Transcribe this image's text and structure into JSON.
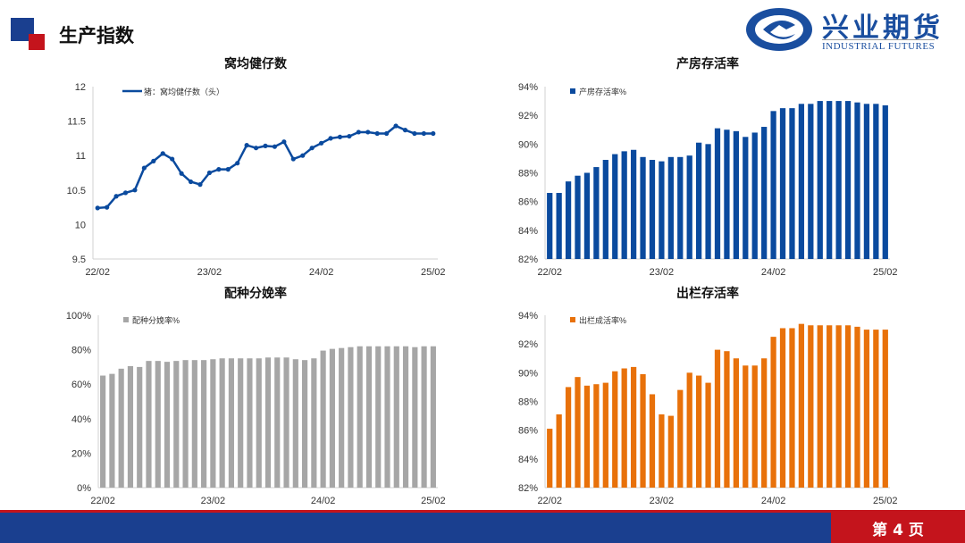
{
  "header": {
    "title": "生产指数",
    "logo_cn": "兴业期货",
    "logo_en": "INDUSTRIAL FUTURES"
  },
  "footer": {
    "page": "第 4 页"
  },
  "colors": {
    "navy": "#1a3f8f",
    "red": "#c4141c",
    "blue": "#0a4a9e",
    "gray": "#a6a6a6",
    "orange": "#e8710a"
  },
  "chart_data": [
    {
      "type": "line",
      "title": "窝均健仔数",
      "legend": "猪：窝均健仔数（头）",
      "color": "#0a4a9e",
      "xticks": [
        "22/02",
        "23/02",
        "24/02",
        "25/02"
      ],
      "ylim": [
        9.5,
        12
      ],
      "yticks": [
        "9.5",
        "10",
        "10.5",
        "11",
        "11.5",
        "12"
      ],
      "ytick_values": [
        9.5,
        10,
        10.5,
        11,
        11.5,
        12
      ],
      "values": [
        10.24,
        10.25,
        10.41,
        10.46,
        10.5,
        10.82,
        10.92,
        11.03,
        10.95,
        10.74,
        10.62,
        10.58,
        10.75,
        10.8,
        10.8,
        10.89,
        11.15,
        11.11,
        11.14,
        11.13,
        11.2,
        10.95,
        11.0,
        11.11,
        11.18,
        11.25,
        11.27,
        11.28,
        11.34,
        11.34,
        11.32,
        11.32,
        11.43,
        11.37,
        11.32,
        11.32,
        11.32
      ]
    },
    {
      "type": "bar",
      "title": "产房存活率",
      "legend": "产房存活率%",
      "color": "#0a4a9e",
      "xticks": [
        "22/02",
        "23/02",
        "24/02",
        "25/02"
      ],
      "ylim": [
        82,
        94
      ],
      "yticks": [
        "82%",
        "84%",
        "86%",
        "88%",
        "90%",
        "92%",
        "94%"
      ],
      "ytick_values": [
        82,
        84,
        86,
        88,
        90,
        92,
        94
      ],
      "values": [
        86.6,
        86.6,
        87.4,
        87.8,
        88.0,
        88.4,
        88.9,
        89.3,
        89.5,
        89.6,
        89.1,
        88.9,
        88.8,
        89.1,
        89.1,
        89.2,
        90.1,
        90.0,
        91.1,
        91.0,
        90.9,
        90.5,
        90.8,
        91.2,
        92.3,
        92.5,
        92.5,
        92.8,
        92.8,
        93.0,
        93.0,
        93.0,
        93.0,
        92.9,
        92.8,
        92.8,
        92.7
      ]
    },
    {
      "type": "bar",
      "title": "配种分娩率",
      "legend": "配种分娩率%",
      "color": "#a6a6a6",
      "xticks": [
        "22/02",
        "23/02",
        "24/02",
        "25/02"
      ],
      "ylim": [
        0,
        100
      ],
      "yticks": [
        "0%",
        "20%",
        "40%",
        "60%",
        "80%",
        "100%"
      ],
      "ytick_values": [
        0,
        20,
        40,
        60,
        80,
        100
      ],
      "values": [
        65,
        66,
        69,
        70.5,
        70,
        73.5,
        73.5,
        73,
        73.5,
        74,
        74,
        74,
        74.5,
        75,
        75,
        75,
        75,
        75,
        75.5,
        75.5,
        75.5,
        74.5,
        74,
        75,
        79.5,
        80.5,
        81,
        81.5,
        82,
        82,
        82,
        82,
        82,
        82,
        81.5,
        82,
        82
      ]
    },
    {
      "type": "bar",
      "title": "出栏存活率",
      "legend": "出栏成活率%",
      "color": "#e8710a",
      "xticks": [
        "22/02",
        "23/02",
        "24/02",
        "25/02"
      ],
      "ylim": [
        82,
        94
      ],
      "yticks": [
        "82%",
        "84%",
        "86%",
        "88%",
        "90%",
        "92%",
        "94%"
      ],
      "ytick_values": [
        82,
        84,
        86,
        88,
        90,
        92,
        94
      ],
      "values": [
        86.1,
        87.1,
        89.0,
        89.7,
        89.1,
        89.2,
        89.3,
        90.1,
        90.3,
        90.4,
        89.9,
        88.5,
        87.1,
        87.0,
        88.8,
        90.0,
        89.8,
        89.3,
        91.6,
        91.5,
        91.0,
        90.5,
        90.5,
        91.0,
        92.5,
        93.1,
        93.1,
        93.4,
        93.3,
        93.3,
        93.3,
        93.3,
        93.3,
        93.2,
        93.0,
        93.0,
        93.0
      ]
    }
  ]
}
